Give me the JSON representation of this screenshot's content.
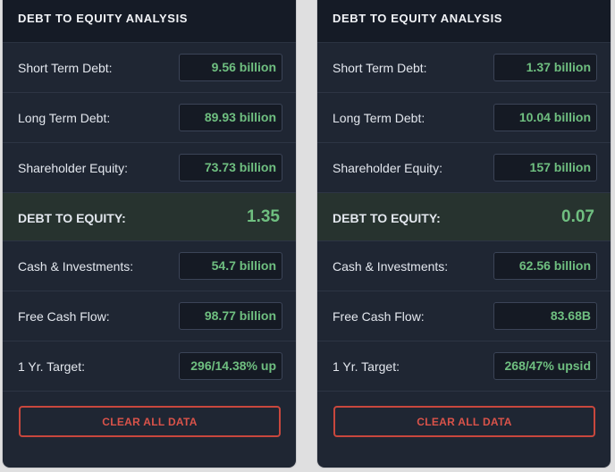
{
  "panels": [
    {
      "title": "DEBT TO EQUITY ANALYSIS",
      "rows": [
        {
          "label": "Short Term Debt:",
          "value": "9.56 billion"
        },
        {
          "label": "Long Term Debt:",
          "value": "89.93 billion"
        },
        {
          "label": "Shareholder Equity:",
          "value": "73.73 billion"
        }
      ],
      "ratio": {
        "label": "DEBT TO EQUITY:",
        "value": "1.35"
      },
      "extra_rows": [
        {
          "label": "Cash & Investments:",
          "value": "54.7 billion"
        },
        {
          "label": "Free Cash Flow:",
          "value": "98.77 billion"
        },
        {
          "label": "1 Yr. Target:",
          "value": "296/14.38% up"
        }
      ],
      "button": "CLEAR ALL DATA"
    },
    {
      "title": "DEBT TO EQUITY ANALYSIS",
      "rows": [
        {
          "label": "Short Term Debt:",
          "value": "1.37 billion"
        },
        {
          "label": "Long Term Debt:",
          "value": "10.04 billion"
        },
        {
          "label": "Shareholder Equity:",
          "value": "157 billion"
        }
      ],
      "ratio": {
        "label": "DEBT TO EQUITY:",
        "value": "0.07"
      },
      "extra_rows": [
        {
          "label": "Cash & Investments:",
          "value": "62.56 billion"
        },
        {
          "label": "Free Cash Flow:",
          "value": "83.68B"
        },
        {
          "label": "1 Yr. Target:",
          "value": "268/47% upsid"
        }
      ],
      "button": "CLEAR ALL DATA"
    }
  ]
}
